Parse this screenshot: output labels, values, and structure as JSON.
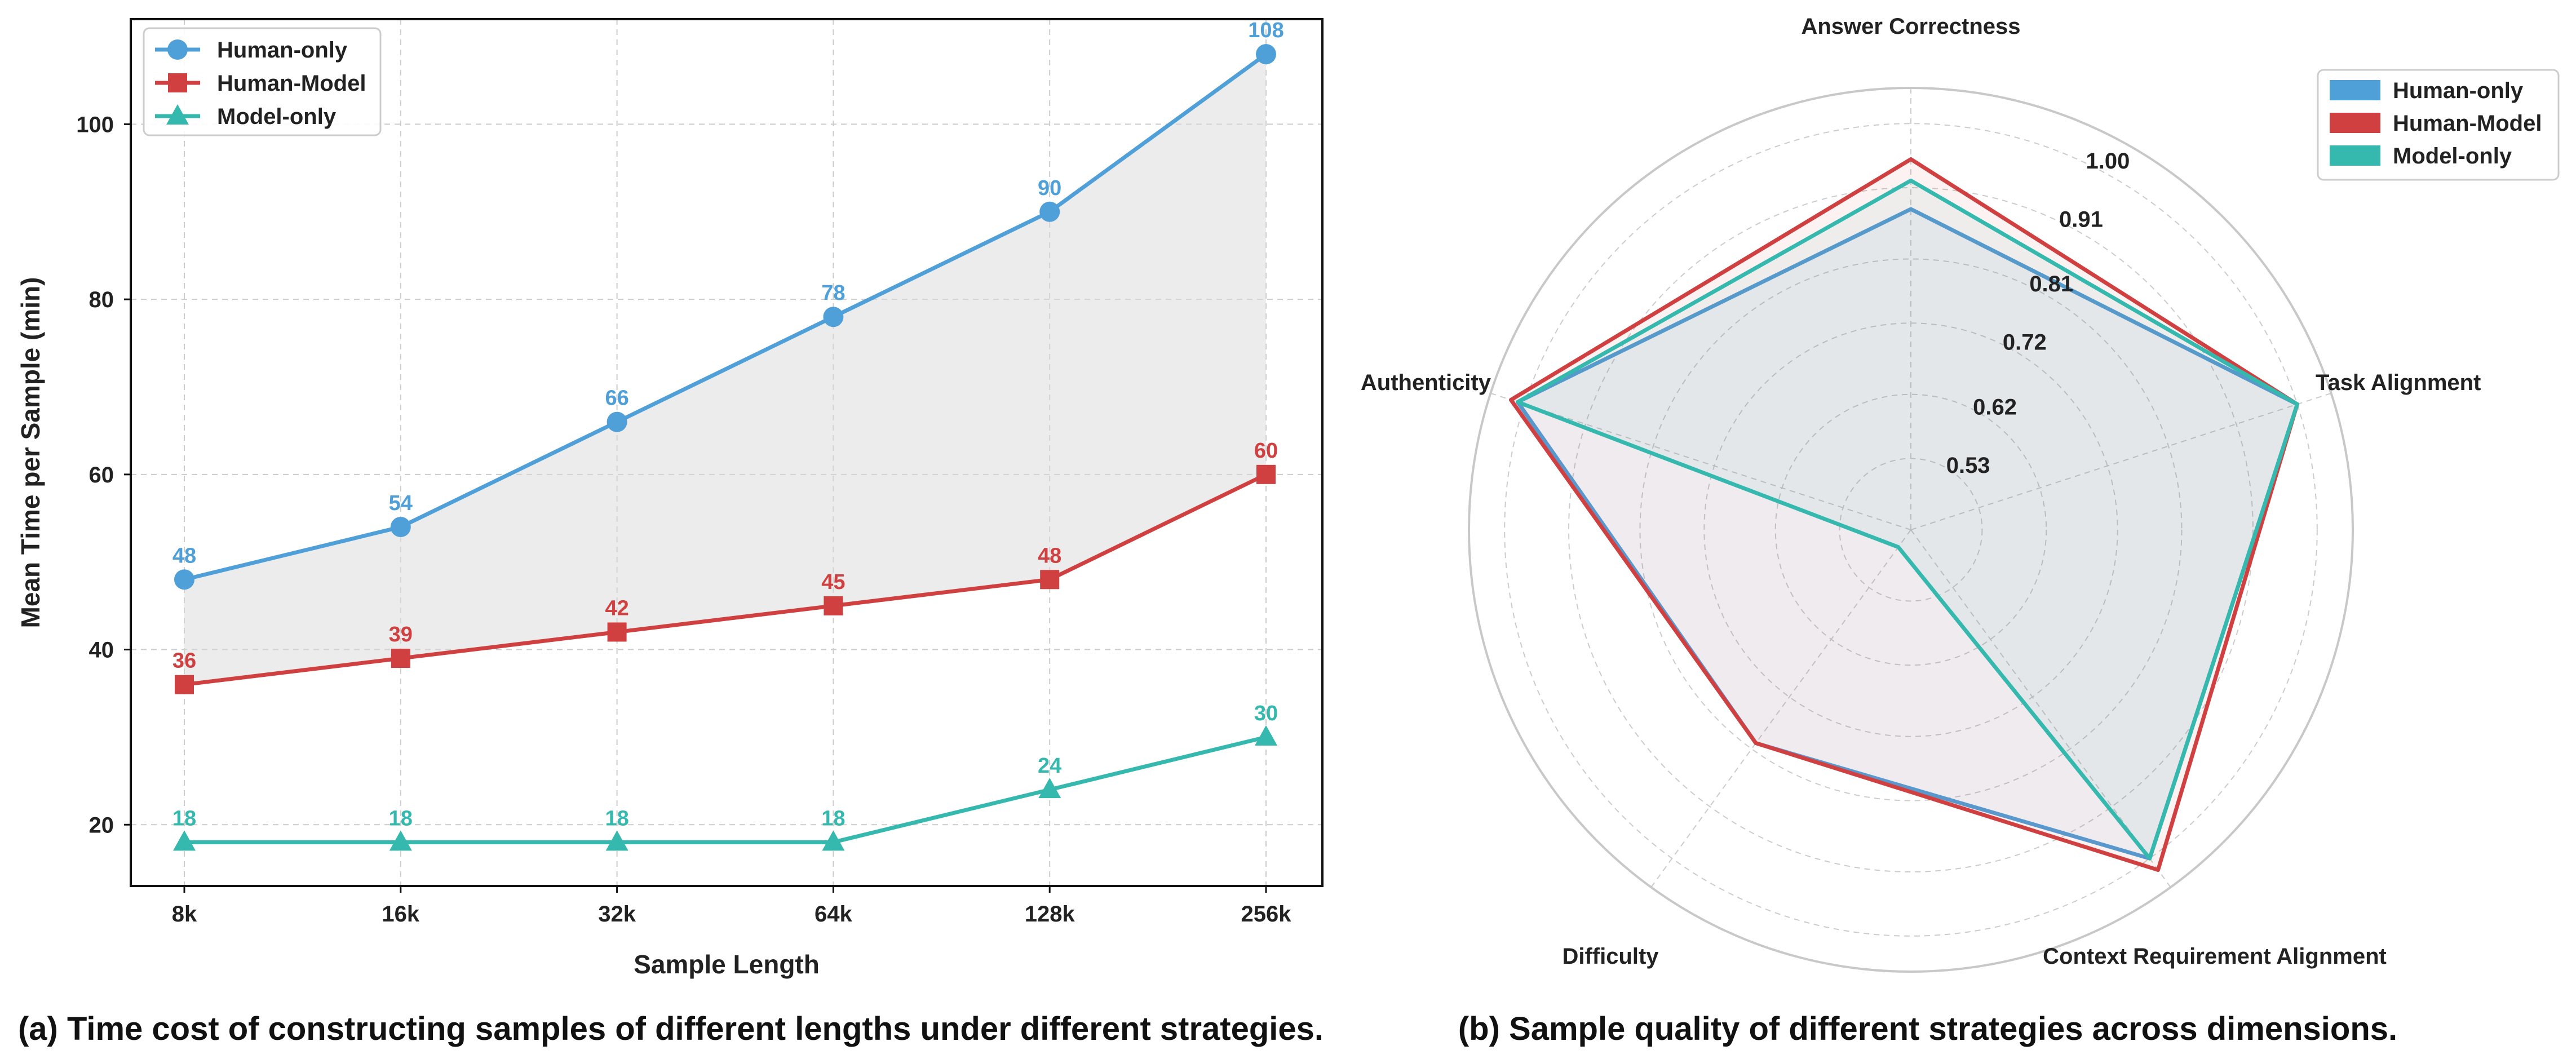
{
  "colors": {
    "human_only": "#4f9fd8",
    "human_model": "#d04040",
    "model_only": "#35b8ad",
    "fill_between": "#d9d9d9",
    "grid": "#cccccc"
  },
  "captions": {
    "left": "(a) Time cost of constructing samples of different lengths under different strategies.",
    "right": "(b) Sample quality of different strategies across dimensions."
  },
  "chart_data": [
    {
      "type": "line",
      "title": "",
      "xlabel": "Sample Length",
      "ylabel": "Mean Time per Sample (min)",
      "categories": [
        "8k",
        "16k",
        "32k",
        "64k",
        "128k",
        "256k"
      ],
      "ylim": [
        13,
        112
      ],
      "yticks": [
        20,
        40,
        60,
        80,
        100
      ],
      "grid": true,
      "legend": "top-left",
      "fill_between": [
        "Human-only",
        "Human-Model"
      ],
      "series": [
        {
          "name": "Human-only",
          "marker": "circle",
          "color": "#4f9fd8",
          "values": [
            48,
            54,
            66,
            78,
            90,
            108
          ]
        },
        {
          "name": "Human-Model",
          "marker": "square",
          "color": "#d04040",
          "values": [
            36,
            39,
            42,
            45,
            48,
            60
          ]
        },
        {
          "name": "Model-only",
          "marker": "triangle",
          "color": "#35b8ad",
          "values": [
            18,
            18,
            18,
            18,
            24,
            30
          ]
        }
      ]
    },
    {
      "type": "radar",
      "title": "",
      "axes": [
        "Answer Correctness",
        "Task Alignment",
        "Context Requirement Alignment",
        "Difficulty",
        "Authenticity"
      ],
      "rlim": [
        0.43,
        1.05
      ],
      "rticks": [
        "0.53",
        "0.62",
        "0.72",
        "0.81",
        "0.91",
        "1.00"
      ],
      "grid": true,
      "legend": "top-right",
      "series": [
        {
          "name": "Human-only",
          "color": "#4f9fd8",
          "values": [
            0.88,
            1.0,
            1.0,
            0.8,
            1.01
          ]
        },
        {
          "name": "Human-Model",
          "color": "#d04040",
          "values": [
            0.95,
            1.0,
            1.02,
            0.8,
            1.02
          ]
        },
        {
          "name": "Model-only",
          "color": "#35b8ad",
          "values": [
            0.92,
            1.0,
            1.0,
            0.46,
            1.01
          ]
        }
      ]
    }
  ]
}
